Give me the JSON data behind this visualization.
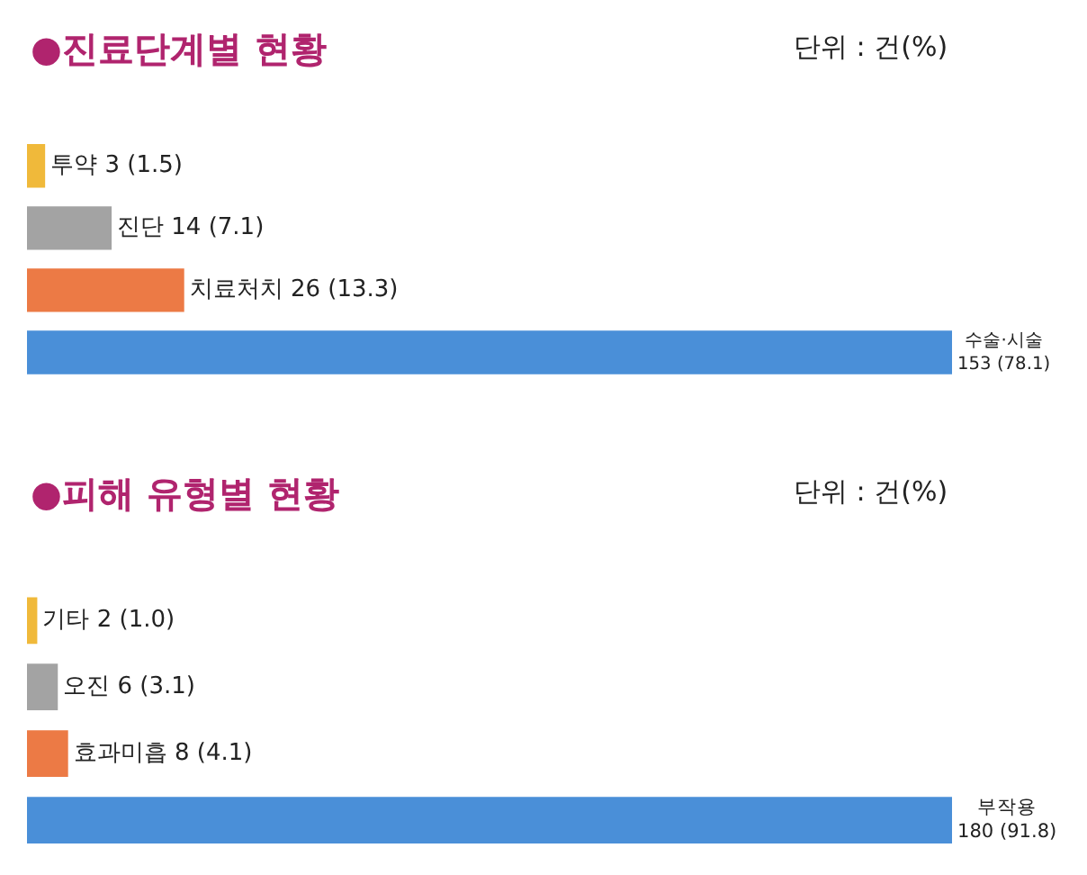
{
  "chart_data": [
    {
      "type": "bar",
      "orientation": "horizontal",
      "title": "●진료단계별 현황",
      "annotations": [
        "단위 : 건(%)"
      ],
      "categories": [
        null,
        null,
        null,
        null
      ],
      "values": [
        3,
        14,
        26,
        153
      ],
      "colors": [
        "#f0b93a",
        "#a3a3a3",
        "#ec7a45",
        "#4a8fd8"
      ],
      "value_labels": [
        "투약 3 (1.5)",
        "진단 14 (7.1)",
        "치료처치 26 (13.3)",
        "수술·시술\n153 (78.1)"
      ],
      "tick_labels": false
    },
    {
      "type": "bar",
      "orientation": "horizontal",
      "title": "●피해 유형별 현황",
      "annotations": [
        "단위 : 건(%)"
      ],
      "categories": [
        null,
        null,
        null,
        null
      ],
      "values": [
        2,
        6,
        8,
        180
      ],
      "colors": [
        "#f0b93a",
        "#a3a3a3",
        "#ec7a45",
        "#4a8fd8"
      ],
      "value_labels": [
        "기타 2 (1.0)",
        "오진 6 (3.1)",
        "효과미흡 8 (4.1)",
        "부작용\n180 (91.8)"
      ],
      "tick_labels": false
    }
  ]
}
